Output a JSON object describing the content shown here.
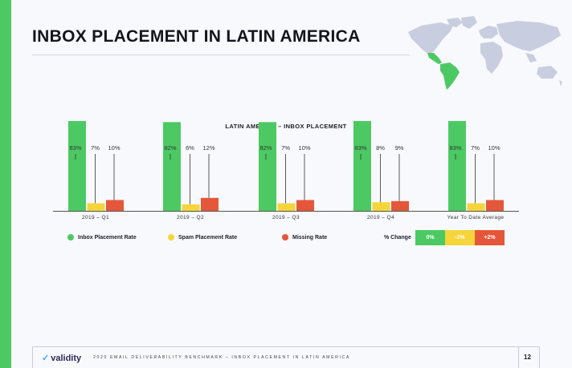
{
  "page": {
    "title": "INBOX PLACEMENT IN LATIN AMERICA",
    "accent_color": "#4cc963",
    "highlight_region_color": "#4cc963",
    "map_base_color": "#c9cde0"
  },
  "chart_data": {
    "type": "bar",
    "title": "LATIN AMERICA – INBOX PLACEMENT",
    "categories": [
      "2019 – Q1",
      "2019 – Q2",
      "2019 – Q3",
      "2019 – Q4",
      "Year To Date Average"
    ],
    "series": [
      {
        "name": "Inbox Placement Rate",
        "color": "#4cc963",
        "values": [
          83,
          82,
          82,
          83,
          83
        ],
        "labels": [
          "83%",
          "82%",
          "82%",
          "83%",
          "83%"
        ]
      },
      {
        "name": "Spam Placement Rate",
        "color": "#f5d53a",
        "values": [
          7,
          6,
          7,
          8,
          7
        ],
        "labels": [
          "7%",
          "6%",
          "7%",
          "8%",
          "7%"
        ]
      },
      {
        "name": "Missing Rate",
        "color": "#e4573a",
        "values": [
          10,
          12,
          10,
          9,
          10
        ],
        "labels": [
          "10%",
          "12%",
          "10%",
          "9%",
          "10%"
        ]
      }
    ],
    "ylim": [
      0,
      100
    ],
    "grid": false,
    "legend_placement": "bottom"
  },
  "change_legend": {
    "label": "% Change",
    "items": [
      {
        "text": "0%",
        "color": "#4cc963"
      },
      {
        "text": "-2%",
        "color": "#f5d53a"
      },
      {
        "text": "+2%",
        "color": "#e4573a"
      }
    ]
  },
  "footer": {
    "logo_text": "validity",
    "text": "2020 EMAIL DELIVERABILITY BENCHMARK – INBOX PLACEMENT IN LATIN AMERICA",
    "page_number": "12"
  }
}
